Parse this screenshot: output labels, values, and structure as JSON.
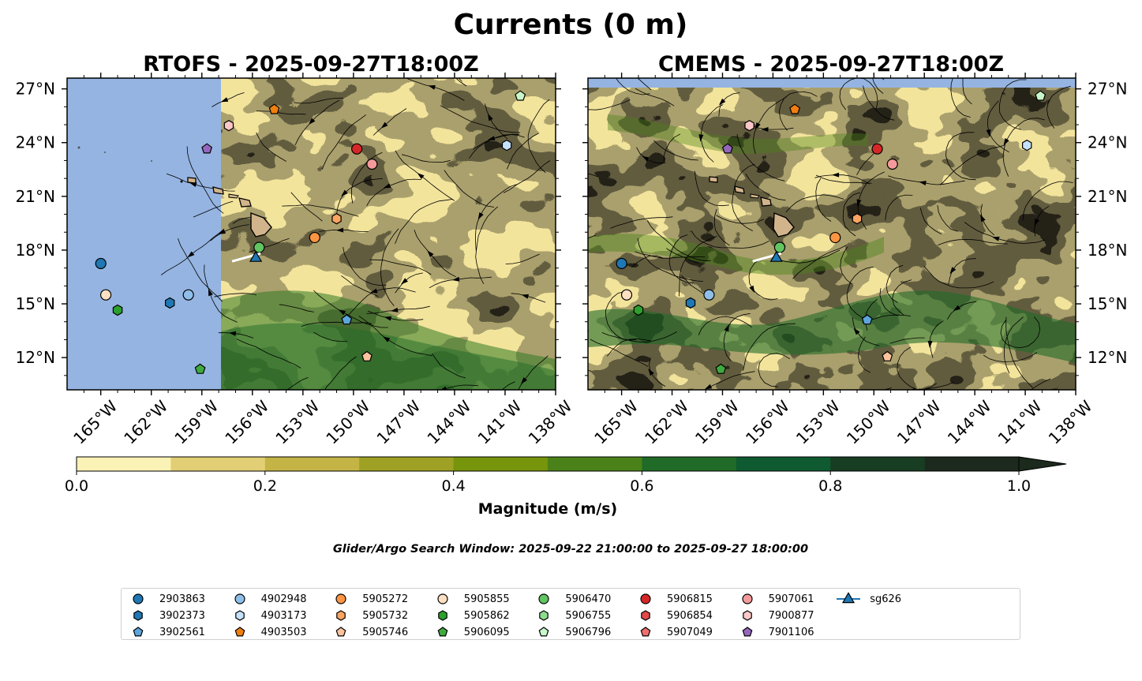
{
  "figure": {
    "title": "Currents (0 m)",
    "panels": [
      {
        "id": "rtofs",
        "title": "RTOFS - 2025-09-27T18:00Z",
        "land_masked_west_of_lon": -157.6
      },
      {
        "id": "cmems",
        "title": "CMEMS - 2025-09-27T18:00Z",
        "land_masked_north_of_lat": 27.0
      }
    ],
    "lat_ticks": [
      "27°N",
      "24°N",
      "21°N",
      "18°N",
      "15°N",
      "12°N"
    ],
    "lon_ticks": [
      "165°W",
      "162°W",
      "159°W",
      "156°W",
      "153°W",
      "150°W",
      "147°W",
      "144°W",
      "141°W",
      "138°W"
    ],
    "extent": {
      "lon": [
        -167,
        -138
      ],
      "lat": [
        10.2,
        27.6
      ]
    },
    "colorbar": {
      "label": "Magnitude (m/s)",
      "ticks": [
        "0.0",
        "0.2",
        "0.4",
        "0.6",
        "0.8",
        "1.0"
      ],
      "levels": [
        0,
        0.1,
        0.2,
        0.3,
        0.4,
        0.5,
        0.6,
        0.7,
        0.8,
        0.9,
        1.0
      ],
      "colors": [
        "#fbf2b6",
        "#e2cf75",
        "#c4b446",
        "#9fa125",
        "#76940c",
        "#4a8219",
        "#1f6b27",
        "#0f5a31",
        "#173d23",
        "#1b2a1c"
      ],
      "extend": "max"
    },
    "search_window": "Glider/Argo Search Window: 2025-09-22 21:00:00 to 2025-09-27 18:00:00",
    "colors": {
      "ocean_mask": "#95b4e1",
      "land": "#d2b48c"
    }
  },
  "platforms": [
    {
      "id": "2903863",
      "marker": "circle",
      "color": "#1f77b4",
      "lon": -165.0,
      "lat": 17.25
    },
    {
      "id": "3902373",
      "marker": "hexagon",
      "color": "#1f77b4",
      "lon": -160.9,
      "lat": 15.05
    },
    {
      "id": "3902561",
      "marker": "pentagon",
      "color": "#5da6dc",
      "lon": -150.4,
      "lat": 14.1
    },
    {
      "id": "4902948",
      "marker": "circle",
      "color": "#8fbfe8",
      "lon": -159.8,
      "lat": 15.5
    },
    {
      "id": "4903173",
      "marker": "hexagon",
      "color": "#c6e2fb",
      "lon": -140.9,
      "lat": 23.85
    },
    {
      "id": "4903503",
      "marker": "pentagon",
      "color": "#f17f0f",
      "lon": -154.7,
      "lat": 25.85
    },
    {
      "id": "5905272",
      "marker": "circle",
      "color": "#fb9543",
      "lon": -152.3,
      "lat": 18.7
    },
    {
      "id": "5905732",
      "marker": "hexagon",
      "color": "#fba460",
      "lon": -151.0,
      "lat": 19.75
    },
    {
      "id": "5905746",
      "marker": "pentagon",
      "color": "#fdc39d",
      "lon": -149.2,
      "lat": 12.05
    },
    {
      "id": "5905855",
      "marker": "circle",
      "color": "#fde0c2",
      "lon": -164.7,
      "lat": 15.5
    },
    {
      "id": "5905862",
      "marker": "hexagon",
      "color": "#2ca02c",
      "lon": -164.0,
      "lat": 14.65
    },
    {
      "id": "5906095",
      "marker": "pentagon",
      "color": "#3eaa3e",
      "lon": -159.1,
      "lat": 11.35
    },
    {
      "id": "5906470",
      "marker": "circle",
      "color": "#61c561",
      "lon": -155.6,
      "lat": 18.15
    },
    {
      "id": "5906755",
      "marker": "hexagon",
      "color": "#8ddc8d",
      "lon": null,
      "lat": null
    },
    {
      "id": "5906796",
      "marker": "pentagon",
      "color": "#c9f7c9",
      "lon": -140.1,
      "lat": 26.6
    },
    {
      "id": "5906815",
      "marker": "circle",
      "color": "#d62728",
      "lon": -149.8,
      "lat": 23.65
    },
    {
      "id": "5906854",
      "marker": "hexagon",
      "color": "#e24a4a",
      "lon": null,
      "lat": null
    },
    {
      "id": "5907049",
      "marker": "pentagon",
      "color": "#ef6f6f",
      "lon": null,
      "lat": null
    },
    {
      "id": "5907061",
      "marker": "circle",
      "color": "#f59a9a",
      "lon": -148.9,
      "lat": 22.8
    },
    {
      "id": "7900877",
      "marker": "hexagon",
      "color": "#fcc7c7",
      "lon": -157.4,
      "lat": 24.95
    },
    {
      "id": "7901106",
      "marker": "pentagon",
      "color": "#9467bd",
      "lon": -158.7,
      "lat": 23.65
    },
    {
      "id": "sg626",
      "marker": "triangle",
      "color": "#1f77b4",
      "lon": -155.8,
      "lat": 17.55
    }
  ]
}
